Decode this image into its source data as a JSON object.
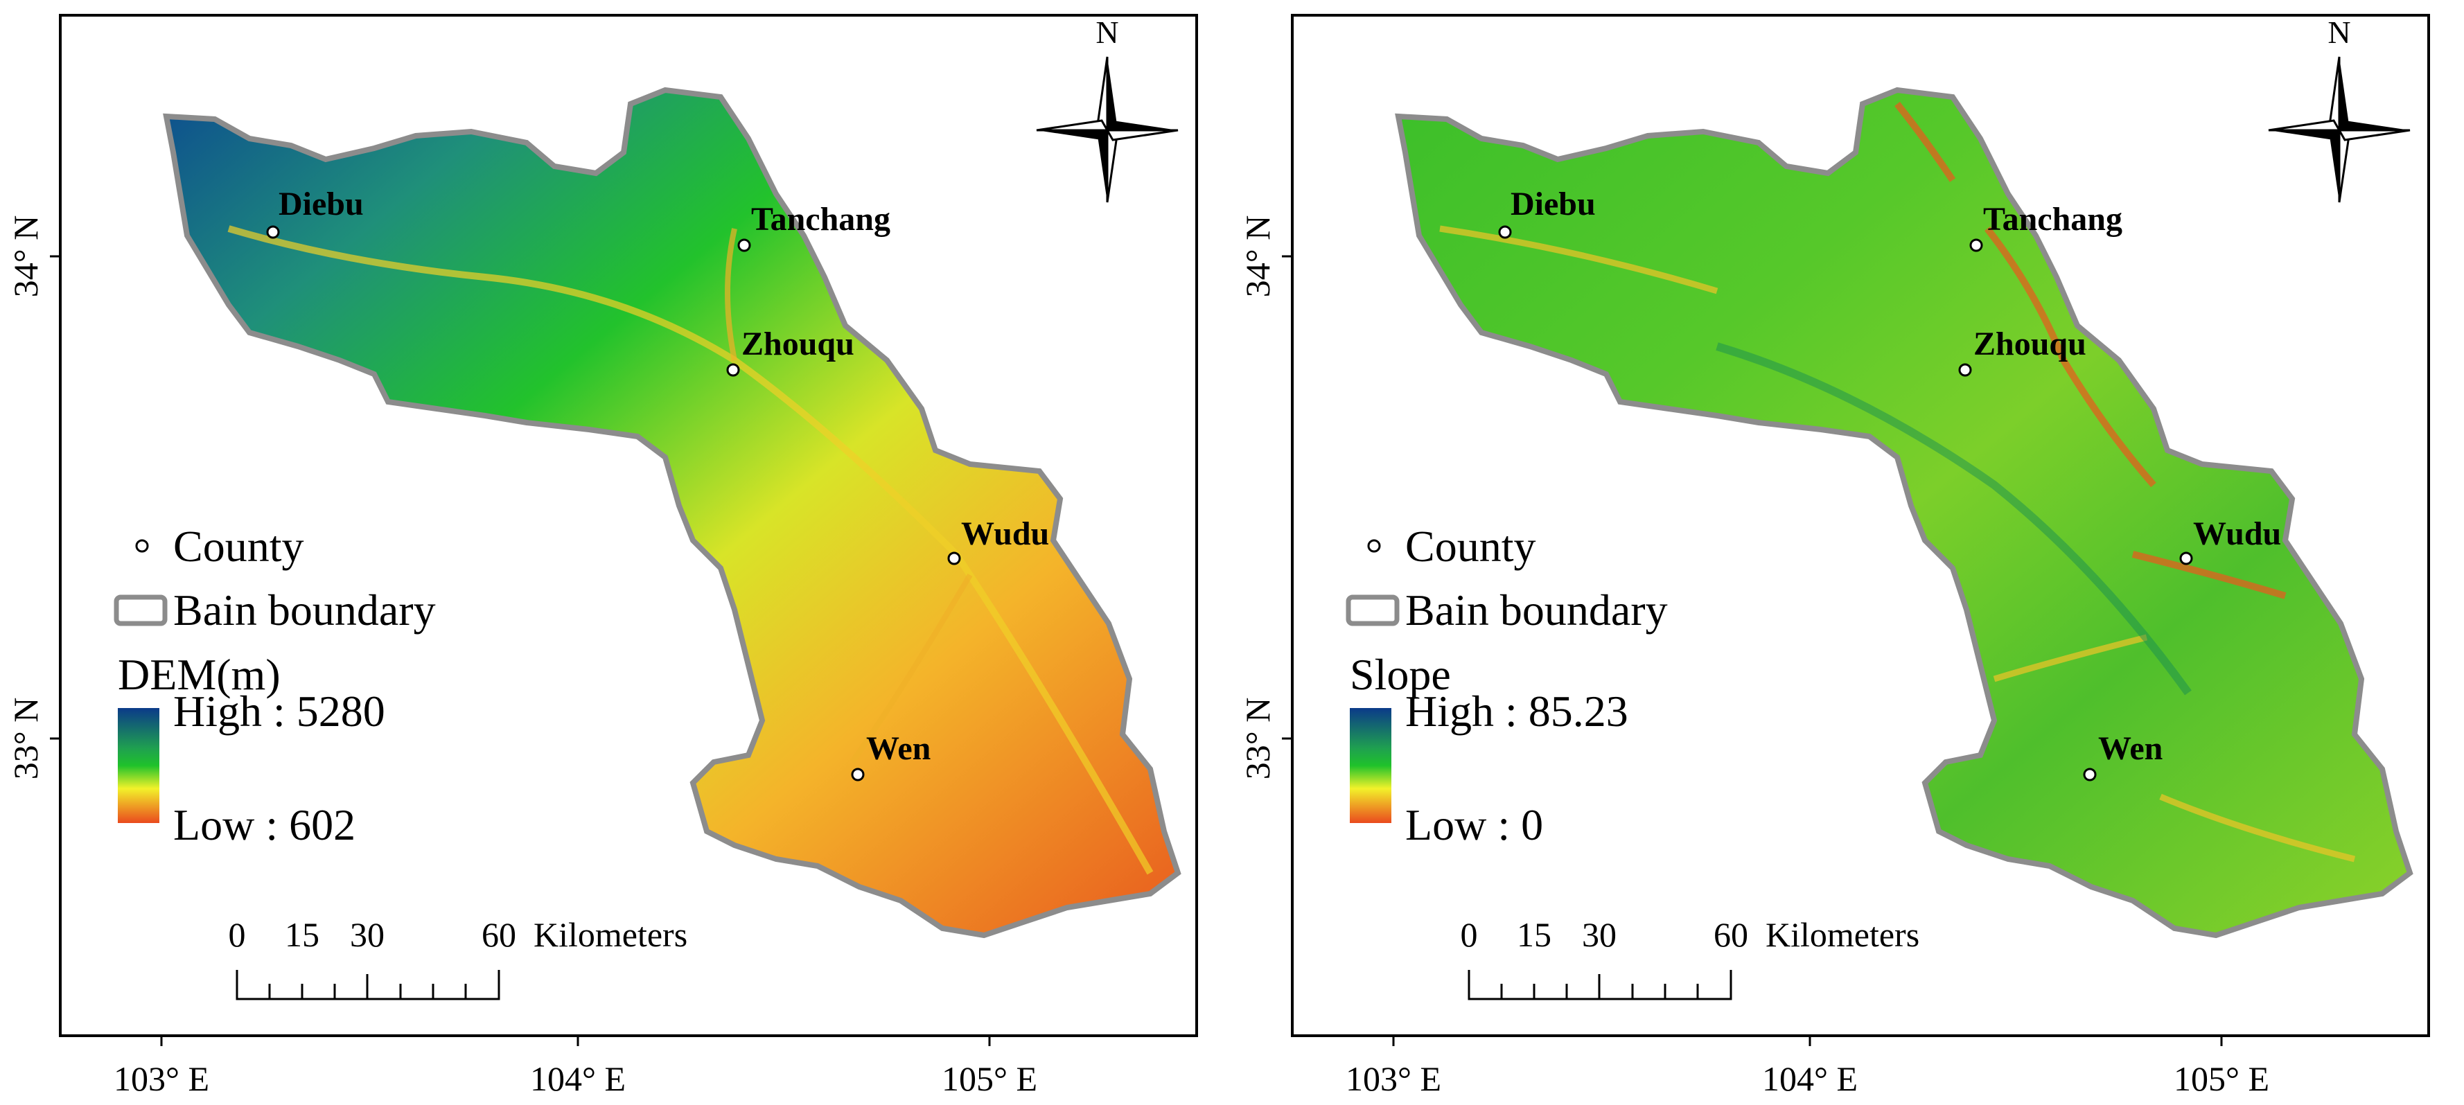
{
  "panels": [
    {
      "id": "dem",
      "north_label": "N",
      "ticks": {
        "x": [
          "103° E",
          "104° E",
          "105° E"
        ],
        "y": [
          "34° N",
          "33° N"
        ]
      },
      "counties": [
        {
          "name": "Diebu"
        },
        {
          "name": "Tanchang"
        },
        {
          "name": "Zhouqu"
        },
        {
          "name": "Wudu"
        },
        {
          "name": "Wen"
        }
      ],
      "legend": {
        "county_label": "County",
        "boundary_label": "Bain boundary",
        "ramp_title": "DEM(m)",
        "high_label": "High : 5280",
        "low_label": "Low : 602"
      },
      "scalebar": {
        "ticks": [
          "0",
          "15",
          "30",
          "60"
        ],
        "unit": "Kilometers"
      },
      "colors": {
        "ramp_high": "#0b3a8a",
        "ramp_mid": "#1fc22b",
        "ramp_mid2": "#f2f22a",
        "ramp_low": "#ea4a1e",
        "boundary": "#8c8c8c"
      }
    },
    {
      "id": "slope",
      "north_label": "N",
      "ticks": {
        "x": [
          "103° E",
          "104° E",
          "105° E"
        ],
        "y": [
          "34° N",
          "33° N"
        ]
      },
      "counties": [
        {
          "name": "Diebu"
        },
        {
          "name": "Tanchang"
        },
        {
          "name": "Zhouqu"
        },
        {
          "name": "Wudu"
        },
        {
          "name": "Wen"
        }
      ],
      "legend": {
        "county_label": "County",
        "boundary_label": "Bain boundary",
        "ramp_title": "Slope",
        "high_label": "High : 85.23",
        "low_label": "Low : 0"
      },
      "scalebar": {
        "ticks": [
          "0",
          "15",
          "30",
          "60"
        ],
        "unit": "Kilometers"
      },
      "colors": {
        "ramp_high": "#0b3a8a",
        "ramp_mid": "#1fc22b",
        "ramp_mid2": "#f2f22a",
        "ramp_low": "#ea4a1e",
        "boundary": "#8c8c8c"
      }
    }
  ]
}
